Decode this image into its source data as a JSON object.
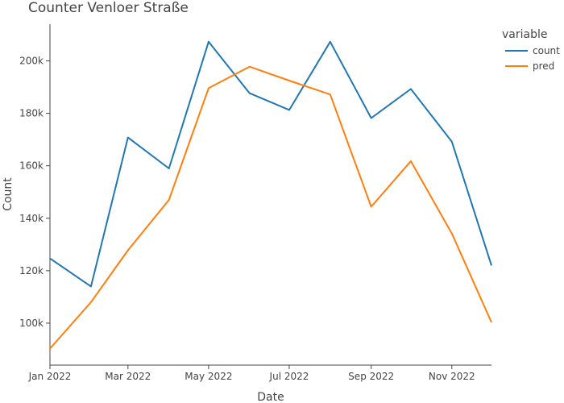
{
  "chart_data": {
    "type": "line",
    "title": "Counter Venloer Straße",
    "xlabel": "Date",
    "ylabel": "Count",
    "x": [
      "2022-01-01",
      "2022-02-01",
      "2022-03-01",
      "2022-04-01",
      "2022-05-01",
      "2022-06-01",
      "2022-07-01",
      "2022-08-01",
      "2022-09-01",
      "2022-10-01",
      "2022-11-01",
      "2022-12-01"
    ],
    "x_ticks": [
      {
        "date": "2022-01-01",
        "label": "Jan 2022"
      },
      {
        "date": "2022-03-01",
        "label": "Mar 2022"
      },
      {
        "date": "2022-05-01",
        "label": "May 2022"
      },
      {
        "date": "2022-07-01",
        "label": "Jul 2022"
      },
      {
        "date": "2022-09-01",
        "label": "Sep 2022"
      },
      {
        "date": "2022-11-01",
        "label": "Nov 2022"
      }
    ],
    "y_ticks": [
      {
        "value": 100000,
        "label": "100k"
      },
      {
        "value": 120000,
        "label": "120k"
      },
      {
        "value": 140000,
        "label": "140k"
      },
      {
        "value": 160000,
        "label": "160k"
      },
      {
        "value": 180000,
        "label": "180k"
      },
      {
        "value": 200000,
        "label": "200k"
      }
    ],
    "xlim": [
      "2022-01-01",
      "2022-12-01"
    ],
    "ylim": [
      84000,
      214000
    ],
    "grid": false,
    "legend": {
      "title": "variable",
      "placement": "top-right"
    },
    "series": [
      {
        "name": "count",
        "color": "#1f77b4",
        "values": [
          124700,
          114000,
          170800,
          159000,
          207300,
          187700,
          181300,
          207300,
          178200,
          189300,
          169200,
          122000
        ]
      },
      {
        "name": "pred",
        "color": "#ff7f0e",
        "values": [
          90300,
          108000,
          127800,
          147000,
          189600,
          197800,
          192500,
          187200,
          144400,
          161800,
          134200,
          100300
        ]
      }
    ]
  }
}
